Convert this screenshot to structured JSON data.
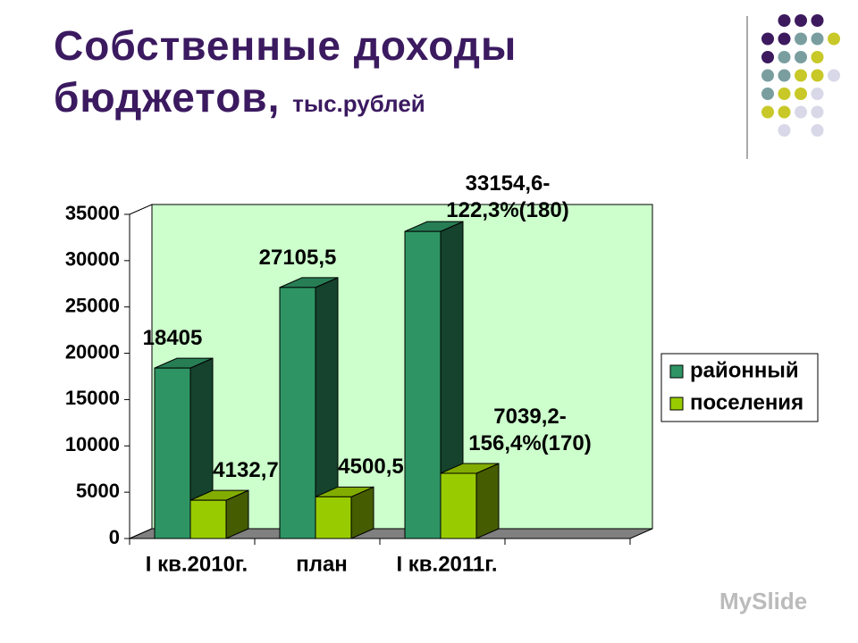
{
  "chart_data": {
    "type": "bar3d",
    "title": "Собственные доходы бюджетов,",
    "subtitle": "тыс.рублей",
    "categories": [
      "I кв.2010г.",
      "план",
      "I кв.2011г."
    ],
    "series": [
      {
        "name": "районный",
        "color": "#2e9464",
        "values": [
          18405,
          27105.5,
          33154.6
        ],
        "value_labels": [
          "18405",
          "27105,5",
          "33154,6-\n122,3%(180)"
        ]
      },
      {
        "name": "поселения",
        "color": "#99cc00",
        "values": [
          4132.7,
          4500.5,
          7039.2
        ],
        "value_labels": [
          "4132,7",
          "4500,5",
          "7039,2-\n156,4%(170)"
        ]
      }
    ],
    "ylim": [
      0,
      35000
    ],
    "yticks": [
      0,
      5000,
      10000,
      15000,
      20000,
      25000,
      30000,
      35000
    ],
    "legend": "right",
    "watermark": "MySlide"
  }
}
